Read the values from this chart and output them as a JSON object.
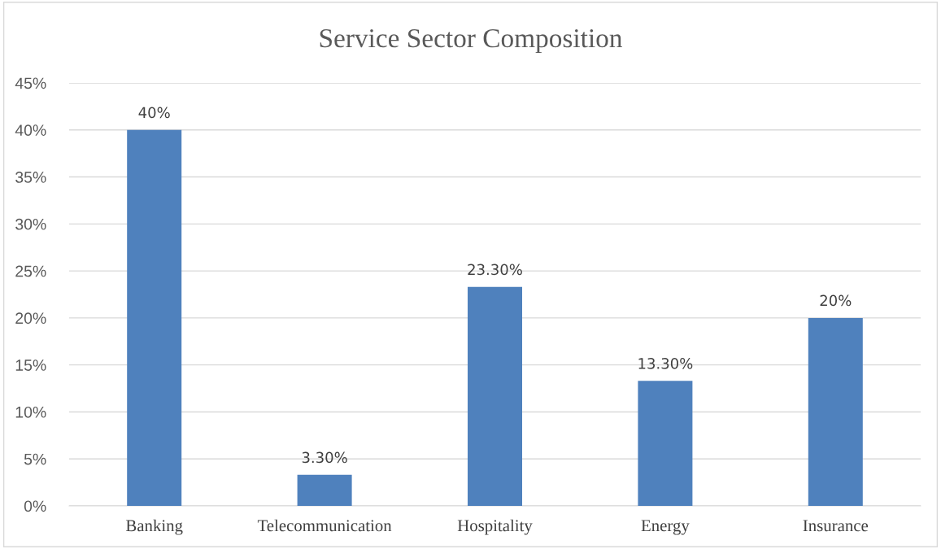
{
  "chart_data": {
    "type": "bar",
    "title": "Service Sector Composition",
    "categories": [
      "Banking",
      "Telecommunication",
      "Hospitality",
      "Energy",
      "Insurance"
    ],
    "values": [
      40,
      3.3,
      23.3,
      13.3,
      20
    ],
    "value_labels": [
      "40%",
      "3.30%",
      "23.30%",
      "13.30%",
      "20%"
    ],
    "color": "#4f81bd",
    "ylim": [
      0,
      45
    ],
    "yticks": [
      {
        "value": 0,
        "label": "0%"
      },
      {
        "value": 5,
        "label": "5%"
      },
      {
        "value": 10,
        "label": "10%"
      },
      {
        "value": 15,
        "label": "15%"
      },
      {
        "value": 20,
        "label": "20%"
      },
      {
        "value": 25,
        "label": "25%"
      },
      {
        "value": 30,
        "label": "30%"
      },
      {
        "value": 35,
        "label": "35%"
      },
      {
        "value": 40,
        "label": "40%"
      },
      {
        "value": 45,
        "label": "45%"
      }
    ],
    "grid": "y"
  }
}
